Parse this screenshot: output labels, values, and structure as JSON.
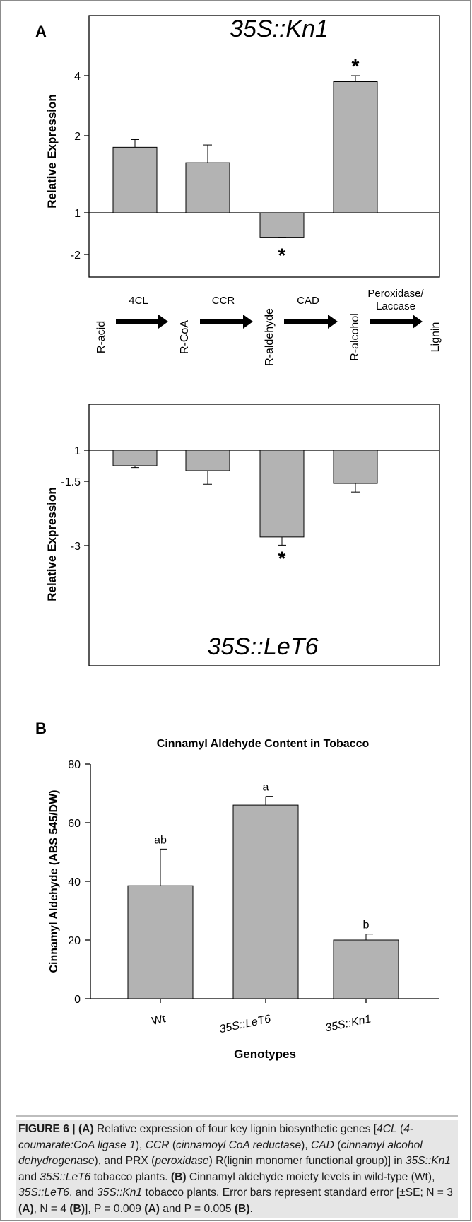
{
  "panel_a": {
    "label": "A",
    "top_chart_title": "35S::Kn1",
    "bottom_chart_title": "35S::LeT6",
    "ylabel": "Relative Expression",
    "top_ticks": [
      "4",
      "2",
      "1",
      "-2"
    ],
    "bottom_ticks": [
      "1",
      "-1.5",
      "-3"
    ],
    "significance_marker": "*",
    "pathway": {
      "nodes": [
        "R-acid",
        "R-CoA",
        "R-aldehyde",
        "R-alcohol",
        "Lignin"
      ],
      "enzymes": [
        "4CL",
        "CCR",
        "CAD",
        "Peroxidase/",
        "Laccase"
      ]
    }
  },
  "panel_b": {
    "label": "B",
    "title": "Cinnamyl Aldehyde Content in Tobacco",
    "ylabel": "Cinnamyl Aldehyde (ABS 545/DW)",
    "xlabel": "Genotypes",
    "yticks": [
      "0",
      "20",
      "40",
      "60",
      "80"
    ]
  },
  "chart_data": [
    {
      "type": "bar",
      "title": "35S::Kn1",
      "ylabel": "Relative Expression",
      "y_axis": "fold change (tick labels 4, 2, 1, -2)",
      "categories": [
        "4CL",
        "CCR",
        "CAD",
        "PRX"
      ],
      "values": [
        1.85,
        1.65,
        -1.6,
        3.8
      ],
      "error_tops": [
        1.95,
        1.88,
        -1.6,
        4.0
      ],
      "significant": [
        false,
        false,
        true,
        true
      ]
    },
    {
      "type": "bar",
      "title": "35S::LeT6",
      "ylabel": "Relative Expression",
      "y_axis": "fold change (tick labels 1, -1.5, -3)",
      "categories": [
        "4CL",
        "CCR",
        "CAD",
        "PRX"
      ],
      "values": [
        -1.25,
        -1.33,
        -2.8,
        -1.55
      ],
      "error_bottoms": [
        -1.28,
        -1.57,
        -2.99,
        -1.75
      ],
      "significant": [
        false,
        false,
        true,
        false
      ]
    },
    {
      "type": "bar",
      "title": "Cinnamyl Aldehyde Content in Tobacco",
      "xlabel": "Genotypes",
      "ylabel": "Cinnamyl Aldehyde (ABS 545/DW)",
      "ylim": [
        0,
        80
      ],
      "categories": [
        "Wt",
        "35S::LeT6",
        "35S::Kn1"
      ],
      "values": [
        38.5,
        66.0,
        20.0
      ],
      "errors": [
        12.5,
        3.0,
        2.0
      ],
      "group_letters": [
        "ab",
        "a",
        "b"
      ],
      "colors": {
        "bar": "#b3b3b3"
      }
    }
  ],
  "caption": {
    "fig_label": "FIGURE 6 |",
    "a_ref": "(A)",
    "b_ref": "(B)",
    "part1": " Relative expression of four key lignin biosynthetic genes [",
    "g1": "4CL",
    "g1_full": "4-coumarate:CoA ligase 1",
    "g2": "CCR",
    "g2_full": "cinnamoyl CoA reductase",
    "g3": "CAD",
    "g3_full": "cinnamyl alcohol dehydrogenase",
    "g4_pre": "), and PRX (",
    "g4_full": "peroxidase",
    "g4_post": ") R(lignin monomer functional group)] in ",
    "geno_kn1": "35S::Kn1",
    "and_text": " and ",
    "geno_let6": "35S::LeT6",
    "tail1": " tobacco plants. ",
    "part2": " Cinnamyl aldehyde moiety levels in wild-type (Wt), ",
    "part3": ", and ",
    "part4": " tobacco plants. Error bars represent standard error [±SE; N = 3 ",
    "part5": ", N = 4 ",
    "part6": "], P = 0.009 ",
    "part7": " and P = 0.005 ",
    "part8": "."
  }
}
